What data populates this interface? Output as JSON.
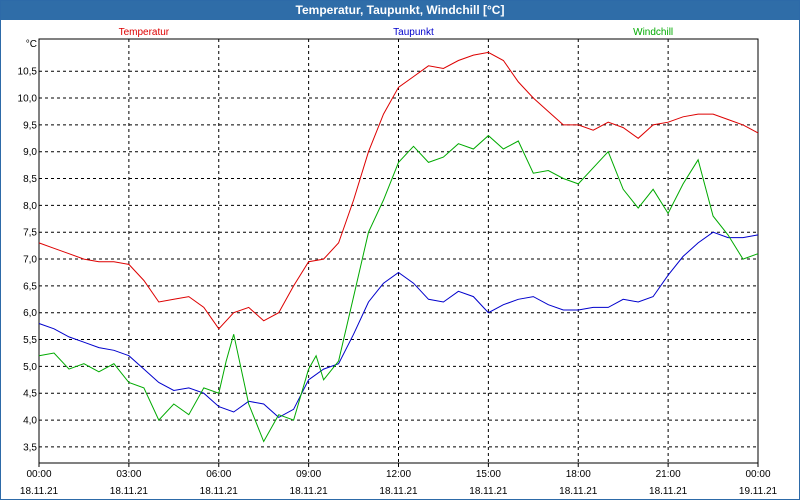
{
  "window": {
    "title": "Temperatur, Taupunkt, Windchill [°C]"
  },
  "chart_data": {
    "type": "line",
    "title": "Temperatur, Taupunkt, Windchill [°C]",
    "ylabel": "°C",
    "xlabel": "",
    "ylim": [
      3.2,
      11.1
    ],
    "xlim": [
      0,
      24
    ],
    "grid": true,
    "y_ticks": [
      3.5,
      4.0,
      4.5,
      5.0,
      5.5,
      6.0,
      6.5,
      7.0,
      7.5,
      8.0,
      8.5,
      9.0,
      9.5,
      10.0,
      10.5
    ],
    "y_tick_labels": [
      "3,5",
      "4,0",
      "4,5",
      "5,0",
      "5,5",
      "6,0",
      "6,5",
      "7,0",
      "7,5",
      "8,0",
      "8,5",
      "9,0",
      "9,5",
      "10,0",
      "10,5"
    ],
    "x_ticks": [
      {
        "t": 0,
        "time": "00:00",
        "date": "18.11.21"
      },
      {
        "t": 3,
        "time": "03:00",
        "date": "18.11.21"
      },
      {
        "t": 6,
        "time": "06:00",
        "date": "18.11.21"
      },
      {
        "t": 9,
        "time": "09:00",
        "date": "18.11.21"
      },
      {
        "t": 12,
        "time": "12:00",
        "date": "18.11.21"
      },
      {
        "t": 15,
        "time": "15:00",
        "date": "18.11.21"
      },
      {
        "t": 18,
        "time": "18:00",
        "date": "18.11.21"
      },
      {
        "t": 21,
        "time": "21:00",
        "date": "18.11.21"
      },
      {
        "t": 24,
        "time": "00:00",
        "date": "19.11.21"
      }
    ],
    "series": [
      {
        "name": "Temperatur",
        "color": "#dd0000",
        "x": [
          0,
          0.5,
          1,
          1.5,
          2,
          2.5,
          3,
          3.5,
          4,
          4.5,
          5,
          5.5,
          6,
          6.5,
          7,
          7.5,
          8,
          8.5,
          9,
          9.5,
          10,
          10.5,
          11,
          11.5,
          12,
          12.5,
          13,
          13.5,
          14,
          14.5,
          15,
          15.5,
          16,
          16.5,
          17,
          17.5,
          18,
          18.5,
          19,
          19.5,
          20,
          20.5,
          21,
          21.5,
          22,
          22.5,
          23,
          23.5,
          24
        ],
        "values": [
          7.3,
          7.2,
          7.1,
          7.0,
          6.95,
          6.95,
          6.9,
          6.6,
          6.2,
          6.25,
          6.3,
          6.1,
          5.7,
          6.0,
          6.1,
          5.85,
          6.0,
          6.5,
          6.95,
          7.0,
          7.3,
          8.1,
          9.0,
          9.7,
          10.2,
          10.4,
          10.6,
          10.55,
          10.7,
          10.8,
          10.85,
          10.7,
          10.3,
          10.0,
          9.75,
          9.5,
          9.5,
          9.4,
          9.55,
          9.45,
          9.25,
          9.5,
          9.55,
          9.65,
          9.7,
          9.7,
          9.6,
          9.5,
          9.35
        ],
        "label_t": 3.5
      },
      {
        "name": "Taupunkt",
        "color": "#0000cc",
        "x": [
          0,
          0.5,
          1,
          1.5,
          2,
          2.5,
          3,
          3.5,
          4,
          4.5,
          5,
          5.5,
          6,
          6.5,
          7,
          7.5,
          8,
          8.5,
          9,
          9.5,
          10,
          10.5,
          11,
          11.5,
          12,
          12.5,
          13,
          13.5,
          14,
          14.5,
          15,
          15.5,
          16,
          16.5,
          17,
          17.5,
          18,
          18.5,
          19,
          19.5,
          20,
          20.5,
          21,
          21.5,
          22,
          22.5,
          23,
          23.5,
          24
        ],
        "values": [
          5.8,
          5.7,
          5.55,
          5.45,
          5.35,
          5.3,
          5.2,
          4.95,
          4.7,
          4.55,
          4.6,
          4.5,
          4.25,
          4.15,
          4.35,
          4.3,
          4.05,
          4.2,
          4.75,
          4.95,
          5.05,
          5.6,
          6.2,
          6.55,
          6.75,
          6.55,
          6.25,
          6.2,
          6.4,
          6.3,
          6.0,
          6.15,
          6.25,
          6.3,
          6.15,
          6.05,
          6.05,
          6.1,
          6.1,
          6.25,
          6.2,
          6.3,
          6.7,
          7.05,
          7.3,
          7.5,
          7.4,
          7.4,
          7.45
        ],
        "label_t": 12.5
      },
      {
        "name": "Windchill",
        "color": "#00aa00",
        "x": [
          0,
          0.5,
          1,
          1.5,
          2,
          2.5,
          3,
          3.5,
          4,
          4.5,
          5,
          5.5,
          6,
          6.25,
          6.5,
          7,
          7.5,
          8,
          8.5,
          9,
          9.25,
          9.5,
          10,
          10.5,
          11,
          11.5,
          12,
          12.5,
          13,
          13.5,
          14,
          14.5,
          15,
          15.5,
          16,
          16.5,
          17,
          17.5,
          18,
          18.5,
          19,
          19.5,
          20,
          20.5,
          21,
          21.5,
          22,
          22.5,
          23,
          23.5,
          24
        ],
        "values": [
          5.2,
          5.25,
          4.95,
          5.05,
          4.9,
          5.05,
          4.7,
          4.6,
          4.0,
          4.3,
          4.1,
          4.6,
          4.5,
          5.1,
          5.6,
          4.3,
          3.6,
          4.1,
          4.0,
          4.95,
          5.2,
          4.75,
          5.1,
          6.3,
          7.5,
          8.1,
          8.8,
          9.1,
          8.8,
          8.9,
          9.15,
          9.05,
          9.3,
          9.05,
          9.2,
          8.6,
          8.65,
          8.5,
          8.4,
          8.7,
          9.0,
          8.3,
          7.95,
          8.3,
          7.85,
          8.4,
          8.85,
          7.8,
          7.45,
          7.0,
          7.1
        ],
        "label_t": 20.5
      }
    ]
  }
}
